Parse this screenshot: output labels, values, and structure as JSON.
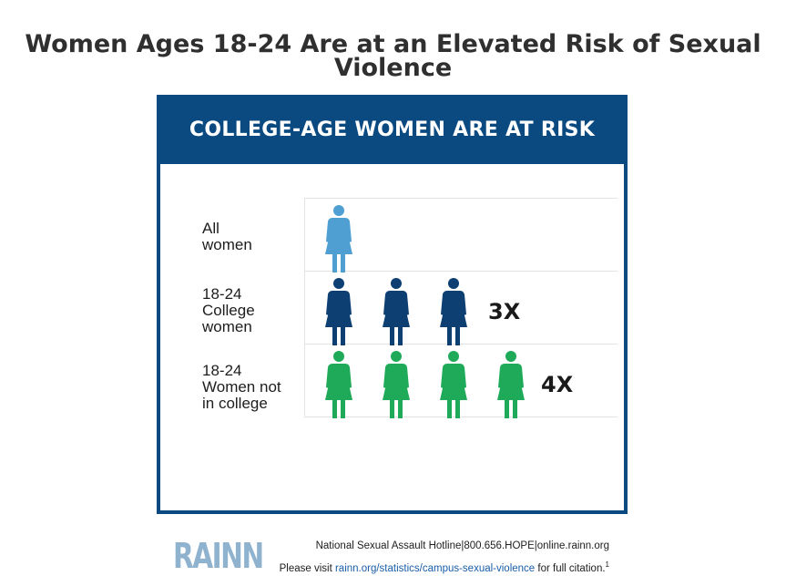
{
  "page": {
    "title": "Women Ages 18-24 Are at an Elevated Risk of Sexual Violence"
  },
  "card": {
    "header": "COLLEGE-AGE WOMEN ARE AT RISK",
    "logo": "RAINN",
    "footer_line1": "National Sexual Assault Hotline|800.656.HOPE|online.rainn.org",
    "footer_line2_prefix": "Please visit ",
    "footer_line2_link": "rainn.org/statistics/campus-sexual-violence",
    "footer_line2_suffix": " for full citation.",
    "footer_sup": "1",
    "colors": {
      "header_bg": "#0b4a80",
      "all_women": "#4f9fd2",
      "college_women": "#0d3f73",
      "non_college_women": "#1faa5a",
      "logo": "#8fb3cf"
    }
  },
  "chart_data": {
    "type": "pictogram",
    "title": "COLLEGE-AGE WOMEN ARE AT RISK",
    "categories": [
      "All women",
      "18-24 College women",
      "18-24 Women not in college"
    ],
    "series": [
      {
        "values": [
          1,
          3,
          4
        ]
      }
    ],
    "rows": [
      {
        "label": "All\nwomen",
        "count": 1,
        "multiplier": "",
        "color": "#4f9fd2"
      },
      {
        "label": "18-24\nCollege\nwomen",
        "count": 3,
        "multiplier": "3X",
        "color": "#0d3f73"
      },
      {
        "label": "18-24\nWomen not\nin college",
        "count": 4,
        "multiplier": "4X",
        "color": "#1faa5a"
      }
    ]
  }
}
